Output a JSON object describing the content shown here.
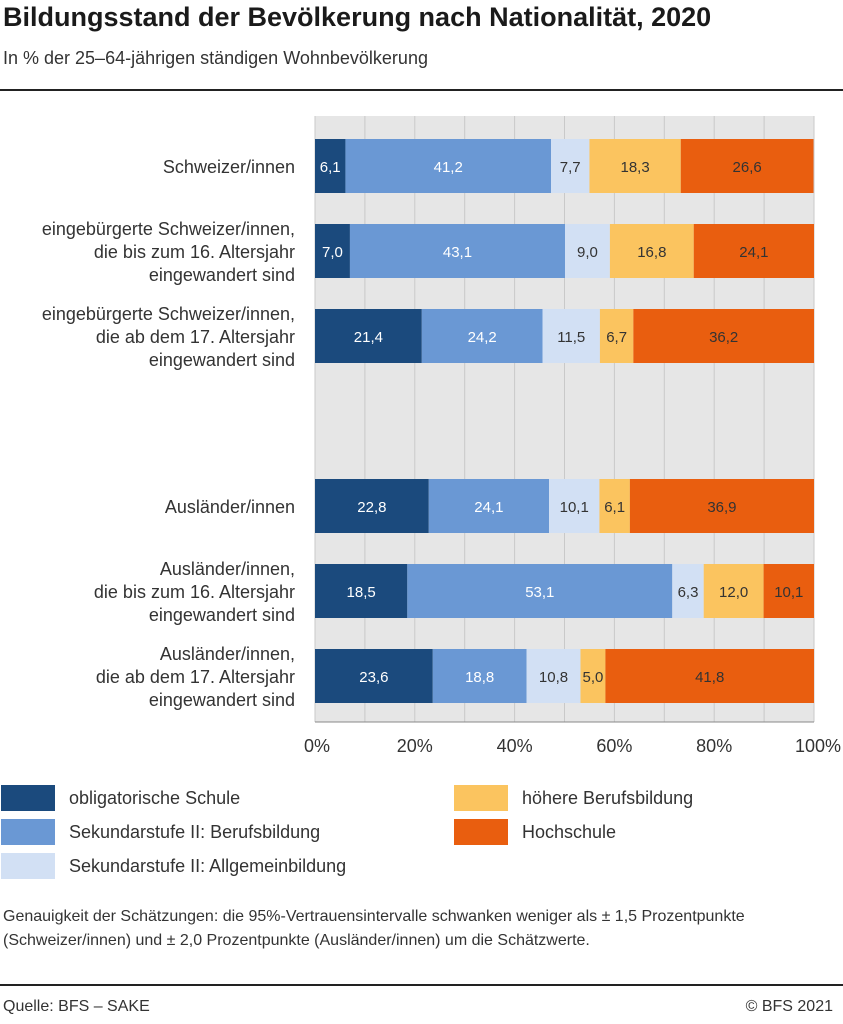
{
  "title": "Bildungsstand der Bevölkerung nach Nationalität, 2020",
  "subtitle": "In % der 25–64-jährigen ständigen Wohnbevölkerung",
  "note": "Genauigkeit der Schätzungen: die 95%-Vertrauensintervalle schwanken weniger als ± 1,5 Prozentpunkte (Schweizer/innen) und ± 2,0 Prozentpunkte (Ausländer/innen) um die Schätzwerte.",
  "source": "Quelle: BFS – SAKE",
  "copyright": "© BFS 2021",
  "chart_data": {
    "type": "bar",
    "orientation": "horizontal",
    "stacked": true,
    "xlim": [
      0,
      100
    ],
    "x_ticks": [
      "0%",
      "20%",
      "40%",
      "60%",
      "80%",
      "100%"
    ],
    "grid": true,
    "legend_position": "bottom",
    "categories": [
      [
        "Schweizer/innen"
      ],
      [
        "eingebürgerte Schweizer/innen,",
        "die bis zum 16. Altersjahr",
        "eingewandert sind"
      ],
      [
        "eingebürgerte Schweizer/innen,",
        "die ab dem 17. Altersjahr",
        "eingewandert sind"
      ],
      [
        "Ausländer/innen"
      ],
      [
        "Ausländer/innen,",
        "die bis zum 16. Altersjahr",
        "eingewandert sind"
      ],
      [
        "Ausländer/innen,",
        "die ab dem 17. Altersjahr",
        "eingewandert sind"
      ]
    ],
    "series": [
      {
        "name": "obligatorische Schule",
        "color": "#1b4a7d",
        "text_color": "#ffffff",
        "values": [
          6.1,
          7.0,
          21.4,
          22.8,
          18.5,
          23.6
        ],
        "labels": [
          "6,1",
          "7,0",
          "21,4",
          "22,8",
          "18,5",
          "23,6"
        ]
      },
      {
        "name": "Sekundarstufe II: Berufsbildung",
        "color": "#6a98d4",
        "text_color": "#ffffff",
        "values": [
          41.2,
          43.1,
          24.2,
          24.1,
          53.1,
          18.8
        ],
        "labels": [
          "41,2",
          "43,1",
          "24,2",
          "24,1",
          "53,1",
          "18,8"
        ]
      },
      {
        "name": "Sekundarstufe II: Allgemeinbildung",
        "color": "#d2e0f4",
        "text_color": "#333333",
        "values": [
          7.7,
          9.0,
          11.5,
          10.1,
          6.3,
          10.8
        ],
        "labels": [
          "7,7",
          "9,0",
          "11,5",
          "10,1",
          "6,3",
          "10,8"
        ]
      },
      {
        "name": "höhere Berufsbildung",
        "color": "#fbc45f",
        "text_color": "#333333",
        "values": [
          18.3,
          16.8,
          6.7,
          6.1,
          12.0,
          5.0
        ],
        "labels": [
          "18,3",
          "16,8",
          "6,7",
          "6,1",
          "12,0",
          "5,0"
        ]
      },
      {
        "name": "Hochschule",
        "color": "#e95e0f",
        "text_color": "#333333",
        "values": [
          26.6,
          24.1,
          36.2,
          36.9,
          10.1,
          41.8
        ],
        "labels": [
          "26,6",
          "24,1",
          "36,2",
          "36,9",
          "10,1",
          "41,8"
        ]
      }
    ]
  }
}
